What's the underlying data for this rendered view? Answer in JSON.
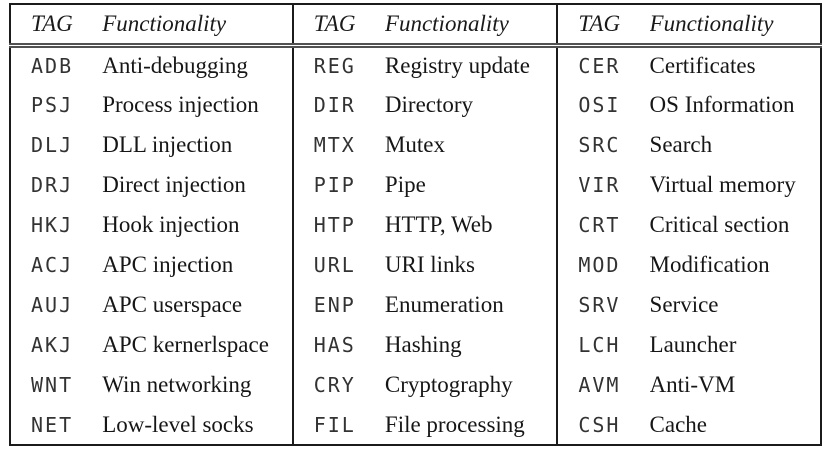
{
  "colors": {
    "outer_border": "#1b1b1b",
    "header_divider": "#515151",
    "functionality_text": "#161616",
    "tag_text": "#333333",
    "background": "#ffffff"
  },
  "table": {
    "groups": [
      {
        "header": {
          "tag": "TAG",
          "functionality": "Functionality"
        },
        "rows": [
          {
            "tag": "ADB",
            "functionality": "Anti-debugging"
          },
          {
            "tag": "PSJ",
            "functionality": "Process injection"
          },
          {
            "tag": "DLJ",
            "functionality": "DLL injection"
          },
          {
            "tag": "DRJ",
            "functionality": "Direct injection"
          },
          {
            "tag": "HKJ",
            "functionality": "Hook injection"
          },
          {
            "tag": "ACJ",
            "functionality": "APC injection"
          },
          {
            "tag": "AUJ",
            "functionality": "APC userspace"
          },
          {
            "tag": "AKJ",
            "functionality": "APC kernerlspace"
          },
          {
            "tag": "WNT",
            "functionality": "Win networking"
          },
          {
            "tag": "NET",
            "functionality": "Low-level socks"
          }
        ]
      },
      {
        "header": {
          "tag": "TAG",
          "functionality": "Functionality"
        },
        "rows": [
          {
            "tag": "REG",
            "functionality": "Registry update"
          },
          {
            "tag": "DIR",
            "functionality": "Directory"
          },
          {
            "tag": "MTX",
            "functionality": "Mutex"
          },
          {
            "tag": "PIP",
            "functionality": "Pipe"
          },
          {
            "tag": "HTP",
            "functionality": "HTTP, Web"
          },
          {
            "tag": "URL",
            "functionality": "URI links"
          },
          {
            "tag": "ENP",
            "functionality": "Enumeration"
          },
          {
            "tag": "HAS",
            "functionality": "Hashing"
          },
          {
            "tag": "CRY",
            "functionality": "Cryptography"
          },
          {
            "tag": "FIL",
            "functionality": "File processing"
          }
        ]
      },
      {
        "header": {
          "tag": "TAG",
          "functionality": "Functionality"
        },
        "rows": [
          {
            "tag": "CER",
            "functionality": "Certificates"
          },
          {
            "tag": "OSI",
            "functionality": "OS Information"
          },
          {
            "tag": "SRC",
            "functionality": "Search"
          },
          {
            "tag": "VIR",
            "functionality": "Virtual memory"
          },
          {
            "tag": "CRT",
            "functionality": "Critical section"
          },
          {
            "tag": "MOD",
            "functionality": "Modification"
          },
          {
            "tag": "SRV",
            "functionality": "Service"
          },
          {
            "tag": "LCH",
            "functionality": "Launcher"
          },
          {
            "tag": "AVM",
            "functionality": "Anti-VM"
          },
          {
            "tag": "CSH",
            "functionality": "Cache"
          }
        ]
      }
    ]
  }
}
